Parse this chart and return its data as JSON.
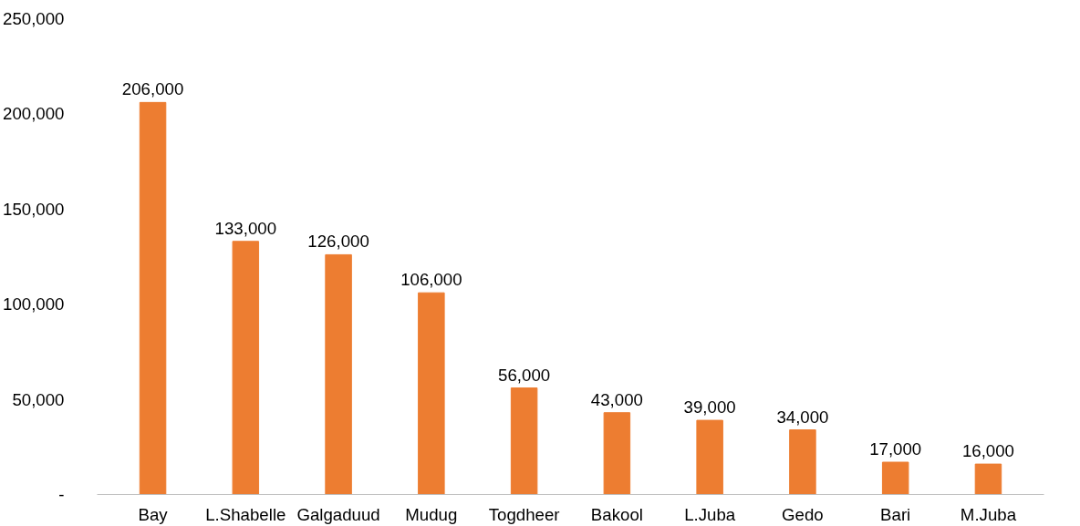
{
  "chart_data": {
    "type": "bar",
    "categories": [
      "Bay",
      "L.Shabelle",
      "Galgaduud",
      "Mudug",
      "Togdheer",
      "Bakool",
      "L.Juba",
      "Gedo",
      "Bari",
      "M.Juba"
    ],
    "values": [
      206000,
      133000,
      126000,
      106000,
      56000,
      43000,
      39000,
      34000,
      17000,
      16000
    ],
    "value_labels": [
      "206,000",
      "133,000",
      "126,000",
      "106,000",
      "56,000",
      "43,000",
      "39,000",
      "34,000",
      "17,000",
      "16,000"
    ],
    "color": "#ed7d31",
    "ylim": [
      0,
      250000
    ],
    "yticks": [
      {
        "value": 0,
        "label": "-"
      },
      {
        "value": 50000,
        "label": "50,000"
      },
      {
        "value": 100000,
        "label": "100,000"
      },
      {
        "value": 150000,
        "label": "150,000"
      },
      {
        "value": 200000,
        "label": "200,000"
      },
      {
        "value": 250000,
        "label": "250,000"
      }
    ],
    "grid": false
  }
}
